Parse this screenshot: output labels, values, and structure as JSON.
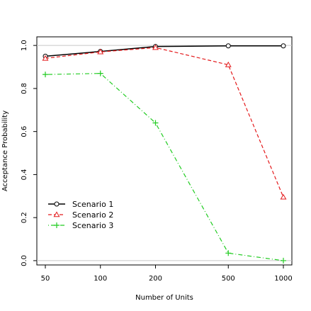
{
  "chart_data": {
    "type": "line",
    "xlabel": "Number of Units",
    "ylabel": "Acceptance Probability",
    "x_scale": "log",
    "x_ticks": [
      50,
      100,
      200,
      500,
      1000
    ],
    "x_tick_labels": [
      "50",
      "100",
      "200",
      "500",
      "1000"
    ],
    "y_ticks": [
      0.0,
      0.2,
      0.4,
      0.6,
      0.8,
      1.0
    ],
    "y_tick_labels": [
      "0.0",
      "0.2",
      "0.4",
      "0.6",
      "0.8",
      "1.0"
    ],
    "ylim": [
      -0.02,
      1.04
    ],
    "reference_lines_y": [
      0,
      1
    ],
    "legend_position": "bottom-left",
    "x": [
      50,
      100,
      200,
      500,
      1000
    ],
    "series": [
      {
        "name": "Scenario 1",
        "color": "#000000",
        "line_style": "solid",
        "marker": "circle",
        "values": [
          0.95,
          0.972,
          0.995,
          0.998,
          0.998
        ]
      },
      {
        "name": "Scenario 2",
        "color": "#e41a1c",
        "line_style": "dashed",
        "marker": "triangle",
        "values": [
          0.94,
          0.97,
          0.99,
          0.91,
          0.295
        ]
      },
      {
        "name": "Scenario 3",
        "color": "#22cc22",
        "line_style": "dotdash",
        "marker": "plus",
        "values": [
          0.865,
          0.87,
          0.64,
          0.035,
          0.0
        ]
      }
    ]
  }
}
